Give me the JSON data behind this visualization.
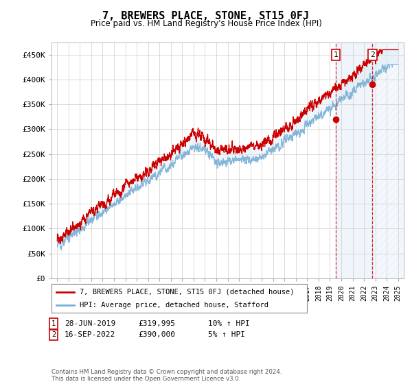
{
  "title": "7, BREWERS PLACE, STONE, ST15 0FJ",
  "subtitle": "Price paid vs. HM Land Registry's House Price Index (HPI)",
  "legend_line1": "7, BREWERS PLACE, STONE, ST15 0FJ (detached house)",
  "legend_line2": "HPI: Average price, detached house, Stafford",
  "transaction1_date": "28-JUN-2019",
  "transaction1_price": "£319,995",
  "transaction1_hpi": "10% ↑ HPI",
  "transaction2_date": "16-SEP-2022",
  "transaction2_price": "£390,000",
  "transaction2_hpi": "5% ↑ HPI",
  "footnote": "Contains HM Land Registry data © Crown copyright and database right 2024.\nThis data is licensed under the Open Government Licence v3.0.",
  "line_color_red": "#cc0000",
  "line_color_blue": "#7aafd4",
  "fill_color_blue": "#d6e8f5",
  "hatch_color": "#c8dff0",
  "vline_color": "#cc0000",
  "background_color": "#ffffff",
  "grid_color": "#cccccc",
  "ylim": [
    0,
    475000
  ],
  "yticks": [
    0,
    50000,
    100000,
    150000,
    200000,
    250000,
    300000,
    350000,
    400000,
    450000
  ],
  "transaction1_year": 2019.5,
  "transaction2_year": 2022.75,
  "transaction1_price_val": 319995,
  "transaction2_price_val": 390000,
  "start_year": 1995,
  "end_year": 2025
}
